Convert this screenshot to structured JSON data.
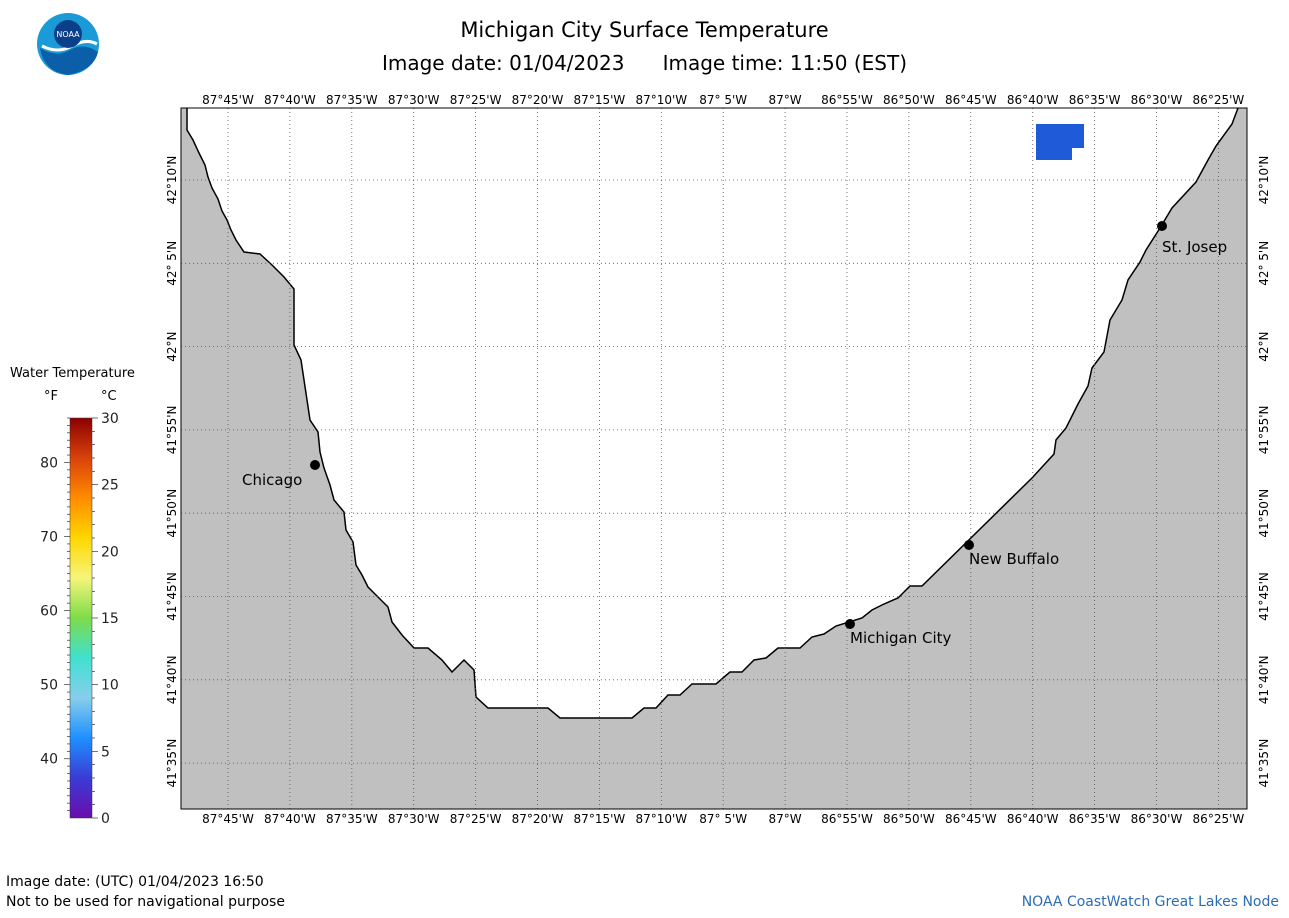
{
  "header": {
    "title": "Michigan City Surface Temperature",
    "image_date_label": "Image date: 01/04/2023",
    "image_time_label": "Image time: 11:50 (EST)"
  },
  "logo": {
    "name": "noaa-logo",
    "text": "NOAA"
  },
  "legend": {
    "title": "Water Temperature",
    "unit_f": "°F",
    "unit_c": "°C",
    "f_ticks": [
      "80",
      "70",
      "60",
      "50",
      "40"
    ],
    "c_ticks": [
      "30",
      "25",
      "20",
      "15",
      "10",
      "5",
      "0"
    ],
    "colors": [
      "#8b0000",
      "#d9420b",
      "#ff8c00",
      "#ffd700",
      "#f5f57a",
      "#7ddc4a",
      "#40e0d0",
      "#87ceeb",
      "#1e90ff",
      "#3b3bd6",
      "#6a0dad"
    ]
  },
  "map": {
    "lon_labels": [
      "87°45'W",
      "87°40'W",
      "87°35'W",
      "87°30'W",
      "87°25'W",
      "87°20'W",
      "87°15'W",
      "87°10'W",
      "87° 5'W",
      "87°W",
      "86°55'W",
      "86°50'W",
      "86°45'W",
      "86°40'W",
      "86°35'W",
      "86°30'W",
      "86°25'W"
    ],
    "lat_labels": [
      "42°10'N",
      "42° 5'N",
      "42°N",
      "41°55'N",
      "41°50'N",
      "41°45'N",
      "41°40'N",
      "41°35'N"
    ],
    "cities": [
      {
        "name": "Chicago"
      },
      {
        "name": "Michigan City"
      },
      {
        "name": "New Buffalo"
      },
      {
        "name": "St. Josep"
      }
    ],
    "land_color": "#c0c0c0",
    "water_color": "#ffffff",
    "data_patch_color": "#1f5bd9"
  },
  "footer": {
    "utc_date": "Image date: (UTC) 01/04/2023  16:50",
    "disclaimer": "Not to be used for navigational purpose",
    "credit": "NOAA CoastWatch Great Lakes Node"
  }
}
